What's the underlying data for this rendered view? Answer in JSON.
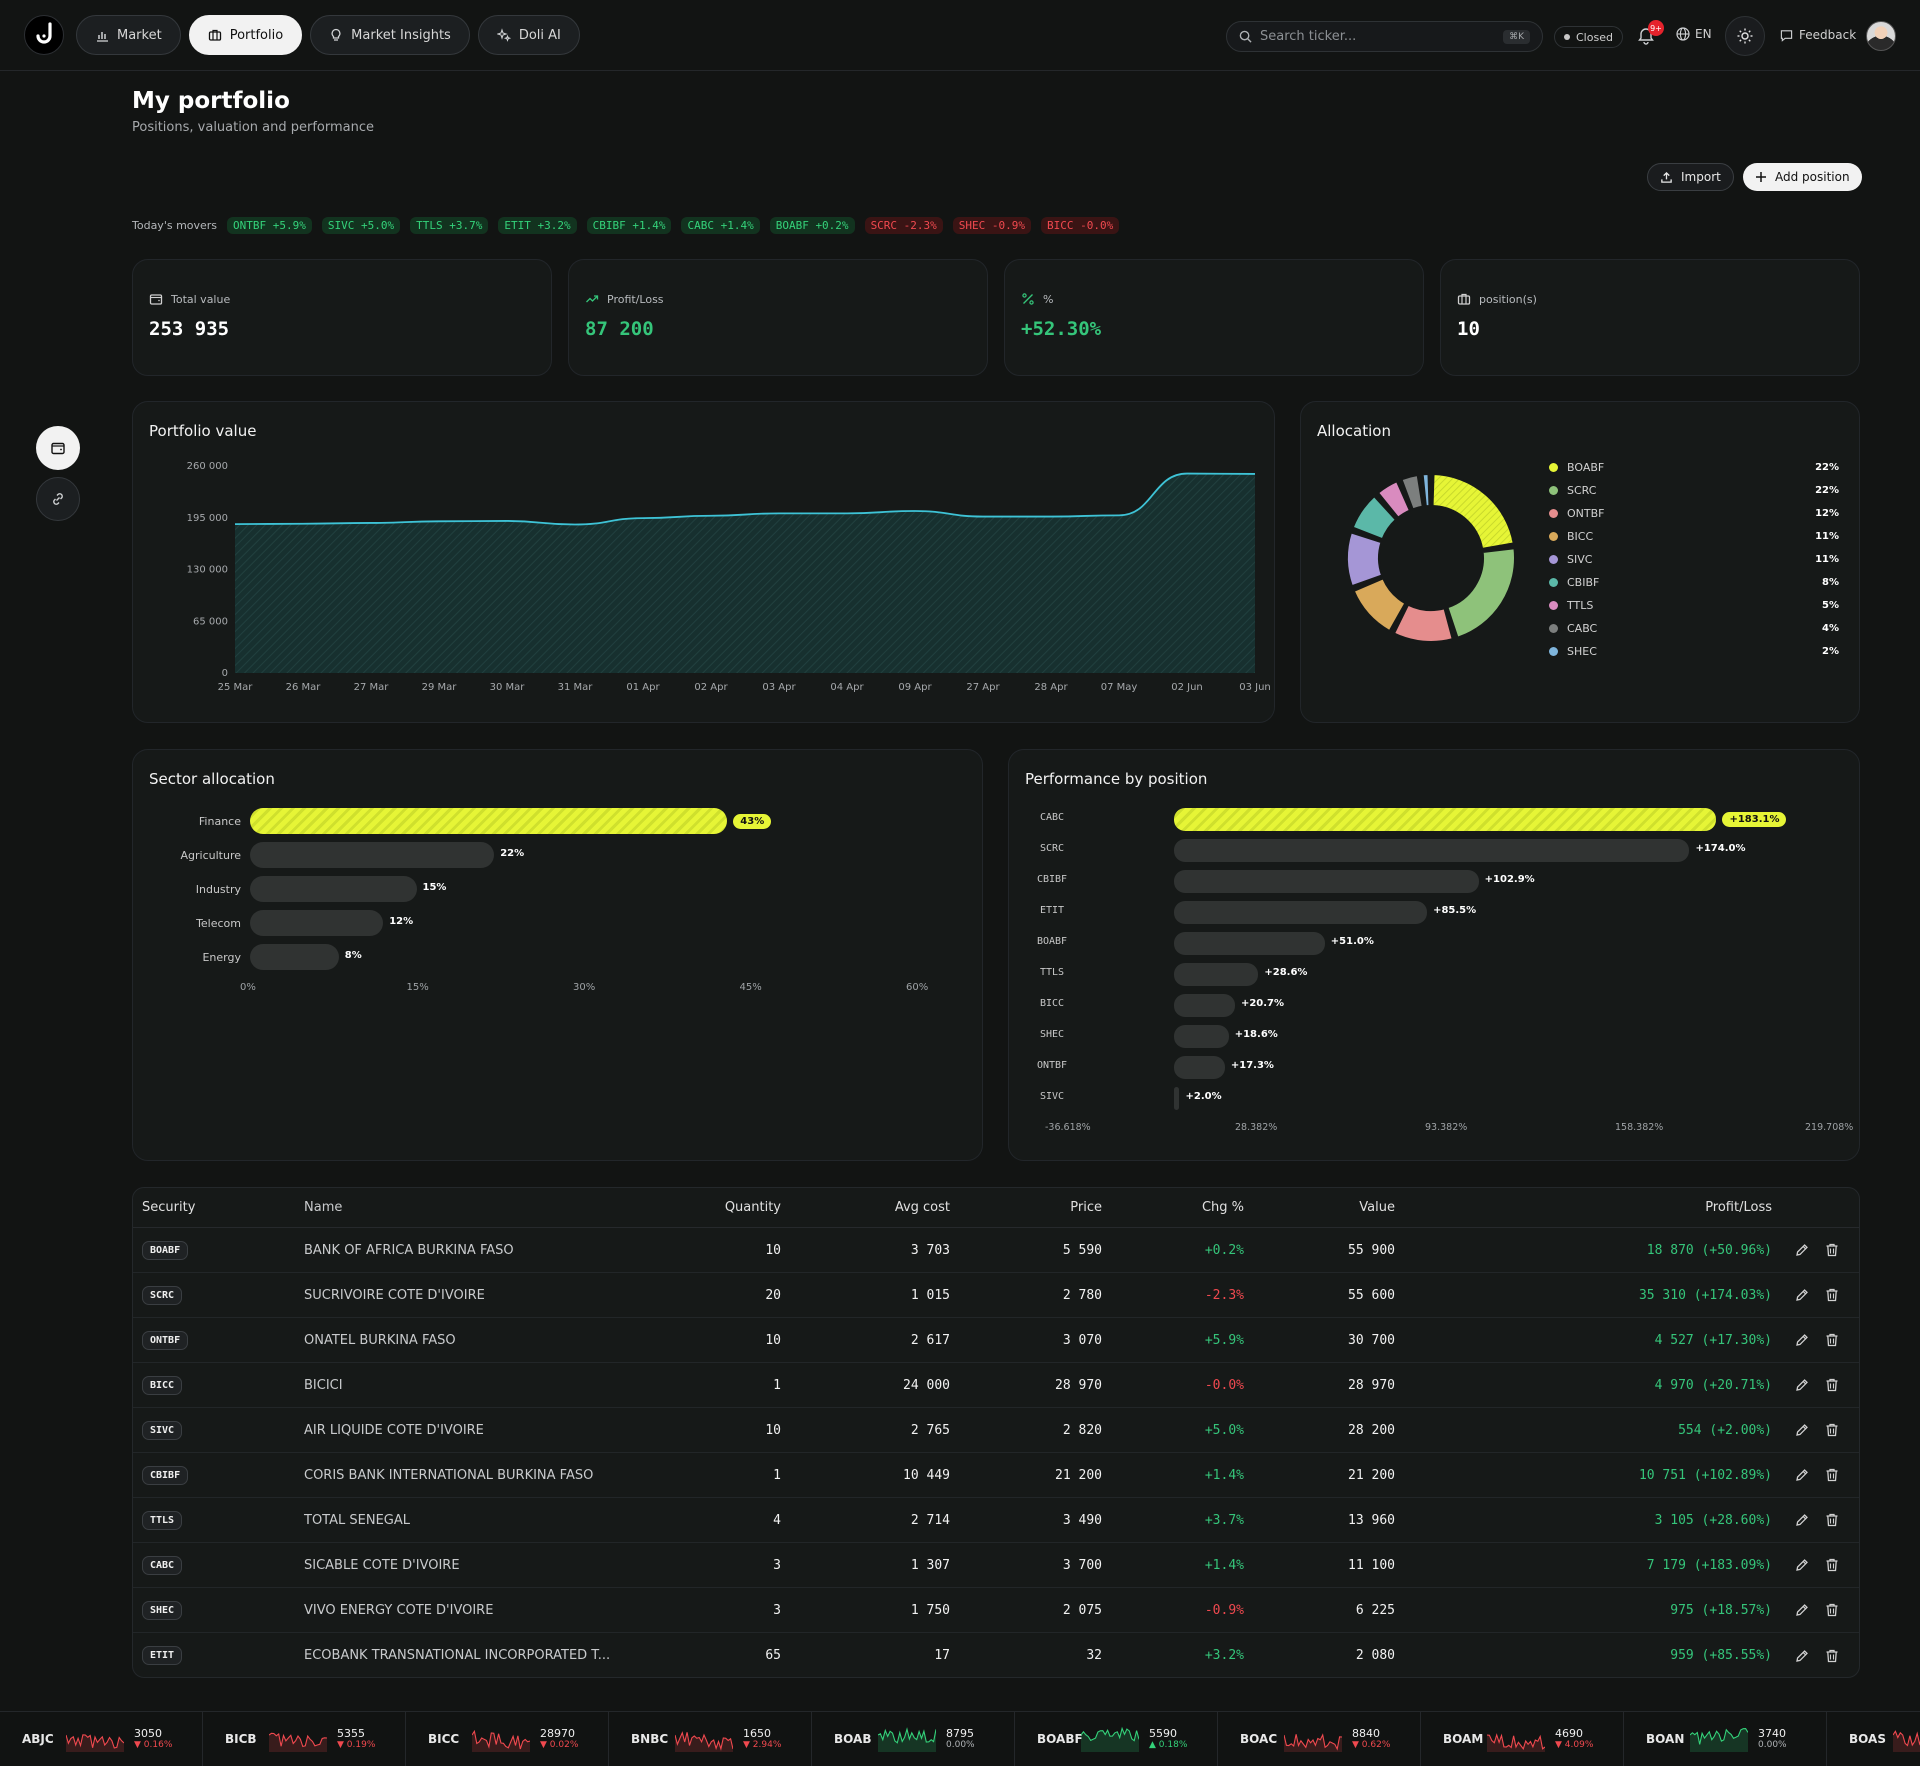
{
  "nav": {
    "items": [
      {
        "label": "Market",
        "icon": "bar-chart-icon",
        "active": false
      },
      {
        "label": "Portfolio",
        "icon": "briefcase-icon",
        "active": true
      },
      {
        "label": "Market Insights",
        "icon": "lightbulb-icon",
        "active": false
      },
      {
        "label": "Doli AI",
        "icon": "sparkles-icon",
        "active": false
      }
    ],
    "search_placeholder": "Search ticker...",
    "search_shortcut": "⌘K",
    "market_status": "Closed",
    "notifications_badge": "9+",
    "language": "EN",
    "feedback_label": "Feedback"
  },
  "header": {
    "title": "My portfolio",
    "subtitle": "Positions, valuation and performance",
    "import_label": "Import",
    "add_label": "Add position"
  },
  "movers": {
    "label": "Today's movers",
    "items": [
      {
        "text": "ONTBF +5.9%",
        "dir": "up"
      },
      {
        "text": "SIVC +5.0%",
        "dir": "up"
      },
      {
        "text": "TTLS +3.7%",
        "dir": "up"
      },
      {
        "text": "ETIT +3.2%",
        "dir": "up"
      },
      {
        "text": "CBIBF +1.4%",
        "dir": "up"
      },
      {
        "text": "CABC +1.4%",
        "dir": "up"
      },
      {
        "text": "BOABF +0.2%",
        "dir": "up"
      },
      {
        "text": "SCRC -2.3%",
        "dir": "down"
      },
      {
        "text": "SHEC -0.9%",
        "dir": "down"
      },
      {
        "text": "BICC -0.0%",
        "dir": "down"
      }
    ]
  },
  "stats": [
    {
      "label": "Total value",
      "value": "253 935",
      "tone": "neutral",
      "icon": "wallet-icon"
    },
    {
      "label": "Profit/Loss",
      "value": "87 200",
      "tone": "green",
      "icon": "trending-up-icon"
    },
    {
      "label": "%",
      "value": "+52.30%",
      "tone": "green",
      "icon": "percent-icon"
    },
    {
      "label": "position(s)",
      "value": "10",
      "tone": "neutral",
      "icon": "briefcase-icon"
    }
  ],
  "charts": {
    "portfolio_title": "Portfolio value",
    "allocation_title": "Allocation",
    "sector_title": "Sector allocation",
    "performance_title": "Performance by position"
  },
  "chart_data": [
    {
      "type": "area",
      "title": "Portfolio value",
      "x": [
        "25 Mar",
        "26 Mar",
        "27 Mar",
        "29 Mar",
        "30 Mar",
        "31 Mar",
        "01 Apr",
        "02 Apr",
        "03 Apr",
        "04 Apr",
        "09 Apr",
        "27 Apr",
        "28 Apr",
        "07 May",
        "02 Jun",
        "03 Jun"
      ],
      "values": [
        187000,
        187500,
        188500,
        190500,
        191000,
        186500,
        194500,
        197500,
        200500,
        200500,
        203500,
        196500,
        196500,
        198000,
        250500,
        250000
      ],
      "yticks": [
        0,
        65000,
        130000,
        195000,
        260000
      ],
      "ytick_labels": [
        "0",
        "65 000",
        "130 000",
        "195 000",
        "260 000"
      ],
      "ylim": [
        0,
        260000
      ],
      "color": "#3ec3d6"
    },
    {
      "type": "pie",
      "title": "Allocation",
      "labels": [
        "BOABF",
        "SCRC",
        "ONTBF",
        "BICC",
        "SIVC",
        "CBIBF",
        "TTLS",
        "CABC",
        "SHEC"
      ],
      "values": [
        22,
        22,
        12,
        11,
        11,
        8,
        5,
        4,
        2
      ],
      "value_labels": [
        "22%",
        "22%",
        "12%",
        "11%",
        "11%",
        "8%",
        "5%",
        "4%",
        "2%"
      ],
      "colors": [
        "#e6f536",
        "#8ec27a",
        "#e58d8d",
        "#d9a95a",
        "#a596d6",
        "#5bb8a8",
        "#d98bbf",
        "#7c7f7e",
        "#7fb5dc"
      ],
      "legend": "right"
    },
    {
      "type": "bar",
      "title": "Sector allocation",
      "orientation": "horizontal",
      "categories": [
        "Finance",
        "Agriculture",
        "Industry",
        "Telecom",
        "Energy"
      ],
      "values": [
        43,
        22,
        15,
        12,
        8
      ],
      "value_labels": [
        "43%",
        "22%",
        "15%",
        "12%",
        "8%"
      ],
      "xticks": [
        "0%",
        "15%",
        "30%",
        "45%",
        "60%"
      ],
      "xlim": [
        0,
        60
      ]
    },
    {
      "type": "bar",
      "title": "Performance by position",
      "orientation": "horizontal",
      "categories": [
        "CABC",
        "SCRC",
        "CBIBF",
        "ETIT",
        "BOABF",
        "TTLS",
        "BICC",
        "SHEC",
        "ONTBF",
        "SIVC"
      ],
      "values": [
        183.1,
        174.0,
        102.9,
        85.5,
        51.0,
        28.6,
        20.7,
        18.6,
        17.3,
        2.0
      ],
      "value_labels": [
        "+183.1%",
        "+174.0%",
        "+102.9%",
        "+85.5%",
        "+51.0%",
        "+28.6%",
        "+20.7%",
        "+18.6%",
        "+17.3%",
        "+2.0%"
      ],
      "xticks": [
        "-36.618%",
        "28.382%",
        "93.382%",
        "158.382%",
        "219.708%"
      ],
      "xlim": [
        -36.618,
        219.708
      ]
    }
  ],
  "table": {
    "headers": [
      "Security",
      "Name",
      "Quantity",
      "Avg cost",
      "Price",
      "Chg %",
      "Value",
      "Profit/Loss"
    ],
    "rows": [
      {
        "ticker": "BOABF",
        "name": "BANK OF AFRICA BURKINA FASO",
        "qty": "10",
        "avg": "3 703",
        "price": "5 590",
        "chg": "+0.2%",
        "chg_dir": "up",
        "value": "55 900",
        "pl": "18 870 (+50.96%)"
      },
      {
        "ticker": "SCRC",
        "name": "SUCRIVOIRE COTE D'IVOIRE",
        "qty": "20",
        "avg": "1 015",
        "price": "2 780",
        "chg": "-2.3%",
        "chg_dir": "down",
        "value": "55 600",
        "pl": "35 310 (+174.03%)"
      },
      {
        "ticker": "ONTBF",
        "name": "ONATEL BURKINA FASO",
        "qty": "10",
        "avg": "2 617",
        "price": "3 070",
        "chg": "+5.9%",
        "chg_dir": "up",
        "value": "30 700",
        "pl": "4 527 (+17.30%)"
      },
      {
        "ticker": "BICC",
        "name": "BICICI",
        "qty": "1",
        "avg": "24 000",
        "price": "28 970",
        "chg": "-0.0%",
        "chg_dir": "down",
        "value": "28 970",
        "pl": "4 970 (+20.71%)"
      },
      {
        "ticker": "SIVC",
        "name": "AIR LIQUIDE COTE D'IVOIRE",
        "qty": "10",
        "avg": "2 765",
        "price": "2 820",
        "chg": "+5.0%",
        "chg_dir": "up",
        "value": "28 200",
        "pl": "554 (+2.00%)"
      },
      {
        "ticker": "CBIBF",
        "name": "CORIS BANK INTERNATIONAL BURKINA FASO",
        "qty": "1",
        "avg": "10 449",
        "price": "21 200",
        "chg": "+1.4%",
        "chg_dir": "up",
        "value": "21 200",
        "pl": "10 751 (+102.89%)"
      },
      {
        "ticker": "TTLS",
        "name": "TOTAL SENEGAL",
        "qty": "4",
        "avg": "2 714",
        "price": "3 490",
        "chg": "+3.7%",
        "chg_dir": "up",
        "value": "13 960",
        "pl": "3 105 (+28.60%)"
      },
      {
        "ticker": "CABC",
        "name": "SICABLE COTE D'IVOIRE",
        "qty": "3",
        "avg": "1 307",
        "price": "3 700",
        "chg": "+1.4%",
        "chg_dir": "up",
        "value": "11 100",
        "pl": "7 179 (+183.09%)"
      },
      {
        "ticker": "SHEC",
        "name": "VIVO ENERGY COTE D'IVOIRE",
        "qty": "3",
        "avg": "1 750",
        "price": "2 075",
        "chg": "-0.9%",
        "chg_dir": "down",
        "value": "6 225",
        "pl": "975 (+18.57%)"
      },
      {
        "ticker": "ETIT",
        "name": "ECOBANK TRANSNATIONAL INCORPORATED T...",
        "qty": "65",
        "avg": "17",
        "price": "32",
        "chg": "+3.2%",
        "chg_dir": "up",
        "value": "2 080",
        "pl": "959 (+85.55%)"
      }
    ]
  },
  "tape": [
    {
      "sym": "ABJC",
      "price": "3050",
      "chg": "▼ 0.16%",
      "dir": "down"
    },
    {
      "sym": "BICB",
      "price": "5355",
      "chg": "▼ 0.19%",
      "dir": "down"
    },
    {
      "sym": "BICC",
      "price": "28970",
      "chg": "▼ 0.02%",
      "dir": "down"
    },
    {
      "sym": "BNBC",
      "price": "1650",
      "chg": "▼ 2.94%",
      "dir": "down"
    },
    {
      "sym": "BOAB",
      "price": "8795",
      "chg": "0.00%",
      "dir": "flat"
    },
    {
      "sym": "BOABF",
      "price": "5590",
      "chg": "▲ 0.18%",
      "dir": "up"
    },
    {
      "sym": "BOAC",
      "price": "8840",
      "chg": "▼ 0.62%",
      "dir": "down"
    },
    {
      "sym": "BOAM",
      "price": "4690",
      "chg": "▼ 4.09%",
      "dir": "down"
    },
    {
      "sym": "BOAN",
      "price": "3740",
      "chg": "0.00%",
      "dir": "flat"
    },
    {
      "sym": "BOAS",
      "price": "",
      "chg": "",
      "dir": "down"
    }
  ]
}
